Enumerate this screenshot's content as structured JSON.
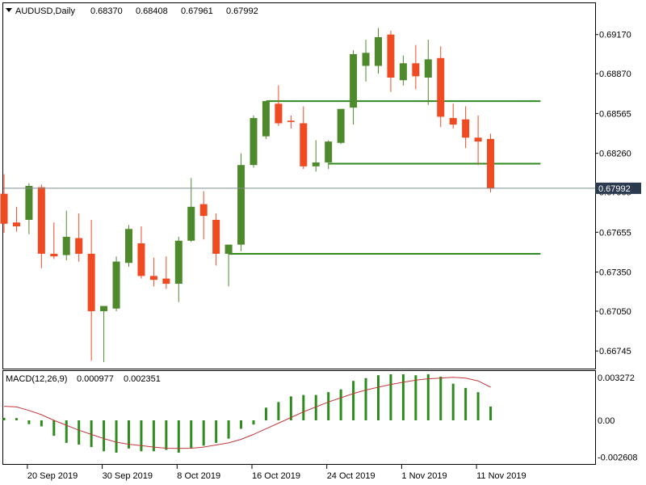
{
  "header": {
    "symbol": "AUDUSD,Daily",
    "open": "0.68370",
    "high": "0.68408",
    "low": "0.67961",
    "close": "0.67992"
  },
  "price_marker": "0.67992",
  "macd_header": {
    "name": "MACD(12,26,9)",
    "main": "0.000977",
    "signal": "0.002351"
  },
  "colors": {
    "bull": "#4e8a2c",
    "bear": "#f04a23",
    "support_line": "#2f8a1f",
    "macd_hist": "#2e8b1e",
    "macd_signal": "#c0393b",
    "background": "#ffffff",
    "marker_bg": "#2b3a4f"
  },
  "chart_data": [
    {
      "type": "candlestick",
      "series_name": "AUDUSD,Daily",
      "y_ticks": [
        "0.69170",
        "0.68870",
        "0.68565",
        "0.68260",
        "0.67965",
        "0.67655",
        "0.67350",
        "0.67050",
        "0.66745"
      ],
      "y_tick_values": [
        0.6917,
        0.6887,
        0.68565,
        0.6826,
        0.67965,
        0.67655,
        0.6735,
        0.6705,
        0.66745
      ],
      "ylim": [
        0.6661,
        0.6941
      ],
      "x_ticks": [
        "20 Sep 2019",
        "30 Sep 2019",
        "8 Oct 2019",
        "16 Oct 2019",
        "24 Oct 2019",
        "1 Nov 2019",
        "11 Nov 2019"
      ],
      "x_tick_index": [
        2,
        8,
        14,
        20,
        26,
        32,
        38
      ],
      "candles": [
        {
          "o": 0.6795,
          "h": 0.681,
          "l": 0.6765,
          "c": 0.6772
        },
        {
          "o": 0.6773,
          "h": 0.6785,
          "l": 0.6766,
          "c": 0.677
        },
        {
          "o": 0.6775,
          "h": 0.6803,
          "l": 0.6764,
          "c": 0.6801
        },
        {
          "o": 0.68,
          "h": 0.6802,
          "l": 0.6738,
          "c": 0.6749
        },
        {
          "o": 0.6749,
          "h": 0.6773,
          "l": 0.6745,
          "c": 0.6747
        },
        {
          "o": 0.6748,
          "h": 0.6782,
          "l": 0.6744,
          "c": 0.6762
        },
        {
          "o": 0.6761,
          "h": 0.678,
          "l": 0.6743,
          "c": 0.6749
        },
        {
          "o": 0.6749,
          "h": 0.6775,
          "l": 0.6667,
          "c": 0.6705
        },
        {
          "o": 0.6705,
          "h": 0.6707,
          "l": 0.6666,
          "c": 0.6709
        },
        {
          "o": 0.6707,
          "h": 0.6747,
          "l": 0.6705,
          "c": 0.6743
        },
        {
          "o": 0.6742,
          "h": 0.6771,
          "l": 0.6739,
          "c": 0.6768
        },
        {
          "o": 0.6757,
          "h": 0.677,
          "l": 0.673,
          "c": 0.6732
        },
        {
          "o": 0.6732,
          "h": 0.6746,
          "l": 0.6724,
          "c": 0.6729
        },
        {
          "o": 0.673,
          "h": 0.6747,
          "l": 0.6722,
          "c": 0.6726
        },
        {
          "o": 0.6726,
          "h": 0.6762,
          "l": 0.6712,
          "c": 0.6759
        },
        {
          "o": 0.6759,
          "h": 0.6807,
          "l": 0.6758,
          "c": 0.6785
        },
        {
          "o": 0.6787,
          "h": 0.6797,
          "l": 0.676,
          "c": 0.6778
        },
        {
          "o": 0.6775,
          "h": 0.678,
          "l": 0.674,
          "c": 0.6749
        },
        {
          "o": 0.6749,
          "h": 0.6755,
          "l": 0.6724,
          "c": 0.6756
        },
        {
          "o": 0.6756,
          "h": 0.6826,
          "l": 0.6751,
          "c": 0.6817
        },
        {
          "o": 0.6817,
          "h": 0.6855,
          "l": 0.6815,
          "c": 0.6853
        },
        {
          "o": 0.6839,
          "h": 0.6866,
          "l": 0.6837,
          "c": 0.6866
        },
        {
          "o": 0.6864,
          "h": 0.6878,
          "l": 0.6847,
          "c": 0.6849
        },
        {
          "o": 0.6851,
          "h": 0.6855,
          "l": 0.6845,
          "c": 0.685
        },
        {
          "o": 0.6849,
          "h": 0.6862,
          "l": 0.6814,
          "c": 0.6816
        },
        {
          "o": 0.6816,
          "h": 0.6836,
          "l": 0.6812,
          "c": 0.6819
        },
        {
          "o": 0.6819,
          "h": 0.6836,
          "l": 0.6814,
          "c": 0.6835
        },
        {
          "o": 0.6834,
          "h": 0.686,
          "l": 0.6833,
          "c": 0.686
        },
        {
          "o": 0.6861,
          "h": 0.6905,
          "l": 0.6848,
          "c": 0.6902
        },
        {
          "o": 0.6893,
          "h": 0.6913,
          "l": 0.6881,
          "c": 0.6903
        },
        {
          "o": 0.6893,
          "h": 0.6922,
          "l": 0.6887,
          "c": 0.6915
        },
        {
          "o": 0.6917,
          "h": 0.692,
          "l": 0.6873,
          "c": 0.6884
        },
        {
          "o": 0.6882,
          "h": 0.6901,
          "l": 0.6878,
          "c": 0.6895
        },
        {
          "o": 0.6895,
          "h": 0.6909,
          "l": 0.6875,
          "c": 0.6885
        },
        {
          "o": 0.6884,
          "h": 0.6913,
          "l": 0.6863,
          "c": 0.6898
        },
        {
          "o": 0.6899,
          "h": 0.6908,
          "l": 0.6846,
          "c": 0.6854
        },
        {
          "o": 0.6853,
          "h": 0.6864,
          "l": 0.6845,
          "c": 0.6848
        },
        {
          "o": 0.6852,
          "h": 0.6862,
          "l": 0.683,
          "c": 0.6838
        },
        {
          "o": 0.6838,
          "h": 0.6855,
          "l": 0.6817,
          "c": 0.6835
        },
        {
          "o": 0.6837,
          "h": 0.6841,
          "l": 0.6796,
          "c": 0.6799
        }
      ],
      "horizontal_lines": [
        {
          "value": 0.6866,
          "from_index": 21,
          "to_index": 43
        },
        {
          "value": 0.6818,
          "from_index": 26,
          "to_index": 43
        },
        {
          "value": 0.6749,
          "from_index": 18,
          "to_index": 43
        }
      ],
      "current_price": 0.67992
    },
    {
      "type": "bar",
      "series_name": "MACD(12,26,9)",
      "y_ticks": [
        "0.003272",
        "0.00",
        "-0.002608"
      ],
      "y_tick_values": [
        0.003272,
        0.0,
        -0.002608
      ],
      "ylim": [
        -0.0031,
        0.0035
      ],
      "histogram": [
        0.00018,
        0.00016,
        -0.00027,
        -0.00043,
        -0.0011,
        -0.0016,
        -0.00172,
        -0.0019,
        -0.0022,
        -0.0023,
        -0.002,
        -0.0022,
        -0.0022,
        -0.0021,
        -0.0023,
        -0.002,
        -0.0018,
        -0.0016,
        -0.0013,
        -0.0006,
        -0.0003,
        0.0009,
        0.0013,
        0.0017,
        0.0018,
        0.0018,
        0.002,
        0.0022,
        0.0028,
        0.003,
        0.0032,
        0.00327,
        0.00327,
        0.0032,
        0.00327,
        0.0031,
        0.0026,
        0.0023,
        0.002,
        0.00098
      ],
      "signal": [
        0.001,
        0.00095,
        0.0007,
        0.0004,
        0.0,
        -0.00035,
        -0.0007,
        -0.001,
        -0.0013,
        -0.00155,
        -0.0017,
        -0.0018,
        -0.0019,
        -0.00198,
        -0.002,
        -0.00198,
        -0.0019,
        -0.00175,
        -0.0016,
        -0.00135,
        -0.001,
        -0.0006,
        -0.0002,
        0.0002,
        0.0006,
        0.00095,
        0.0013,
        0.0016,
        0.0019,
        0.00215,
        0.00235,
        0.00255,
        0.0027,
        0.00285,
        0.00295,
        0.003,
        0.00305,
        0.003,
        0.0028,
        0.00235
      ]
    }
  ]
}
